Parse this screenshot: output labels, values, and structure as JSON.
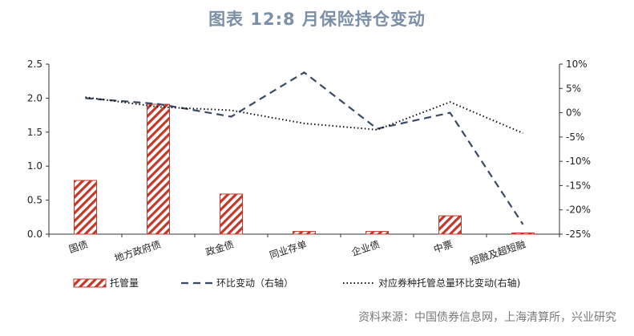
{
  "title": "图表 12:8 月保险持仓变动",
  "source": "资料来源：中国债券信息网，上海清算所，兴业研究",
  "colors": {
    "bar": "#c0392b",
    "line": "#3b4a63",
    "dots": "#111111",
    "title": "#7b8fa6"
  },
  "chart_data": {
    "type": "bar",
    "categories": [
      "国债",
      "地方政府债",
      "政金债",
      "同业存单",
      "企业债",
      "中票",
      "短融及超短融"
    ],
    "ylim": [
      0,
      2.5
    ],
    "y_ticks": [
      "0.0",
      "0.5",
      "1.0",
      "1.5",
      "2.0",
      "2.5"
    ],
    "y2lim": [
      -25,
      10
    ],
    "y2_ticks": [
      "-25%",
      "-20%",
      "-15%",
      "-10%",
      "-5%",
      "0%",
      "5%",
      "10%"
    ],
    "grid": false,
    "legend_position": "bottom",
    "series": [
      {
        "name": "托管量",
        "type": "bar",
        "axis": "left",
        "values": [
          0.79,
          1.91,
          0.59,
          0.04,
          0.04,
          0.27,
          0.01
        ]
      },
      {
        "name": "环比变动（右轴）",
        "type": "line",
        "axis": "right",
        "style": "dashed",
        "values": [
          3.0,
          1.8,
          -0.8,
          8.3,
          -3.3,
          0.0,
          -23.0
        ]
      },
      {
        "name": "对应券种托管总量环比变动(右轴)",
        "type": "line",
        "axis": "right",
        "style": "dotted",
        "values": [
          3.2,
          1.2,
          0.5,
          -2.2,
          -3.5,
          2.2,
          -4.2
        ]
      }
    ]
  }
}
